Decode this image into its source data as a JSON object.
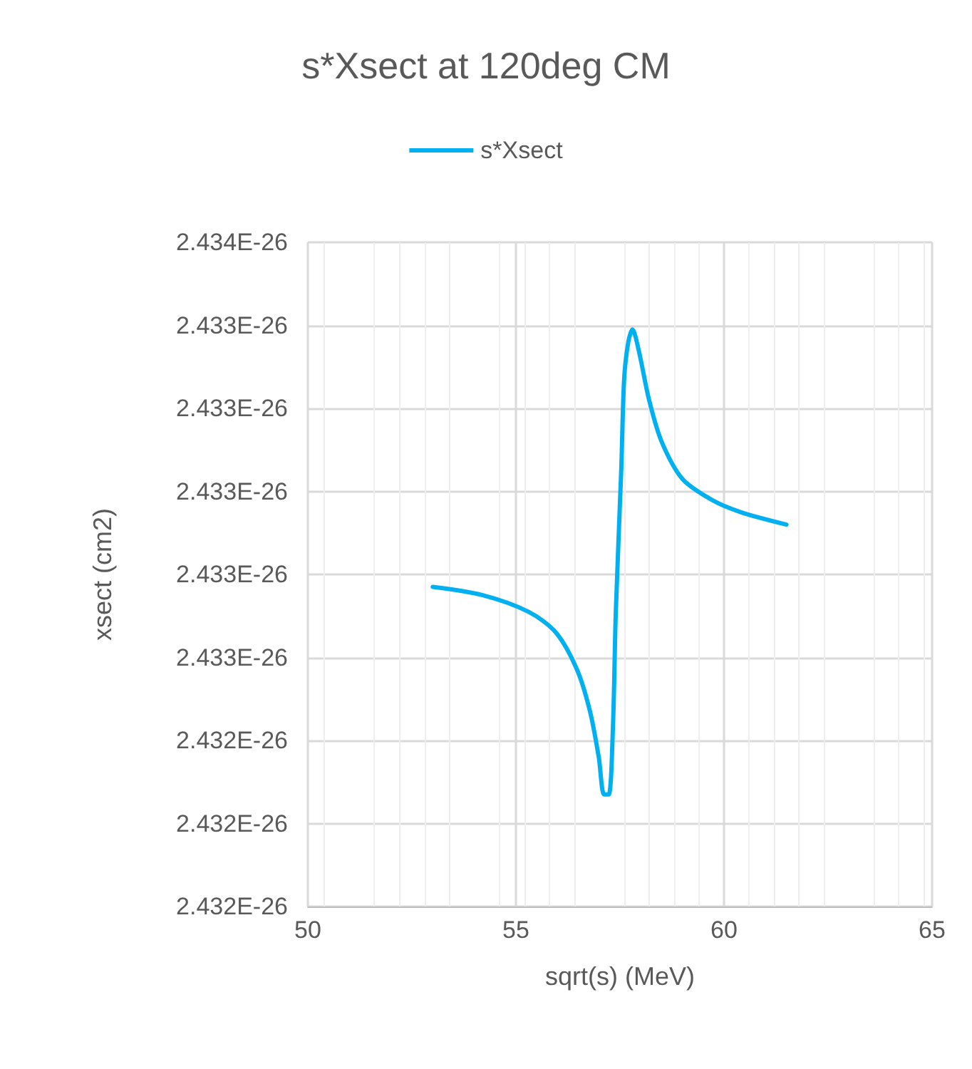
{
  "chart_data": {
    "type": "line",
    "title": "s*Xsect at 120deg CM",
    "xlabel": "sqrt(s) (MeV)",
    "ylabel": "xsect (cm2)",
    "series": [
      {
        "name": "s*Xsect",
        "color": "#00b0f0",
        "x": [
          53.0,
          54.2,
          55.3,
          55.96,
          56.47,
          56.78,
          56.99,
          57.12,
          57.23,
          57.33,
          57.4,
          57.53,
          57.6,
          57.7,
          57.8,
          57.95,
          58.2,
          58.5,
          59.0,
          59.7,
          60.4,
          61.5
        ],
        "values": [
          2.43277e-26,
          2.43275e-26,
          2.43271e-26,
          2.43266e-26,
          2.43257e-26,
          2.43247e-26,
          2.43236e-26,
          2.43227e-26,
          2.43227e-26,
          2.43243e-26,
          2.43271e-26,
          2.43305e-26,
          2.43327e-26,
          2.43336e-26,
          2.43339e-26,
          2.43334e-26,
          2.43322e-26,
          2.43312e-26,
          2.43303e-26,
          2.43298e-26,
          2.43295e-26,
          2.43292e-26
        ]
      }
    ],
    "xlim": [
      50,
      65
    ],
    "xticks": [
      50,
      55,
      60,
      65
    ],
    "ylim": [
      2.432e-26,
      2.4336e-26
    ],
    "yticks": [
      {
        "value": 2.432e-26,
        "label": "2.432E-26"
      },
      {
        "value": 2.4322e-26,
        "label": "2.432E-26"
      },
      {
        "value": 2.4324e-26,
        "label": "2.432E-26"
      },
      {
        "value": 2.4326e-26,
        "label": "2.433E-26"
      },
      {
        "value": 2.4328e-26,
        "label": "2.433E-26"
      },
      {
        "value": 2.433e-26,
        "label": "2.433E-26"
      },
      {
        "value": 2.4332e-26,
        "label": "2.433E-26"
      },
      {
        "value": 2.4334e-26,
        "label": "2.433E-26"
      },
      {
        "value": 2.4336e-26,
        "label": "2.434E-26"
      }
    ],
    "grid": true,
    "legend": "top",
    "marker": "none",
    "line_style": "solid"
  }
}
